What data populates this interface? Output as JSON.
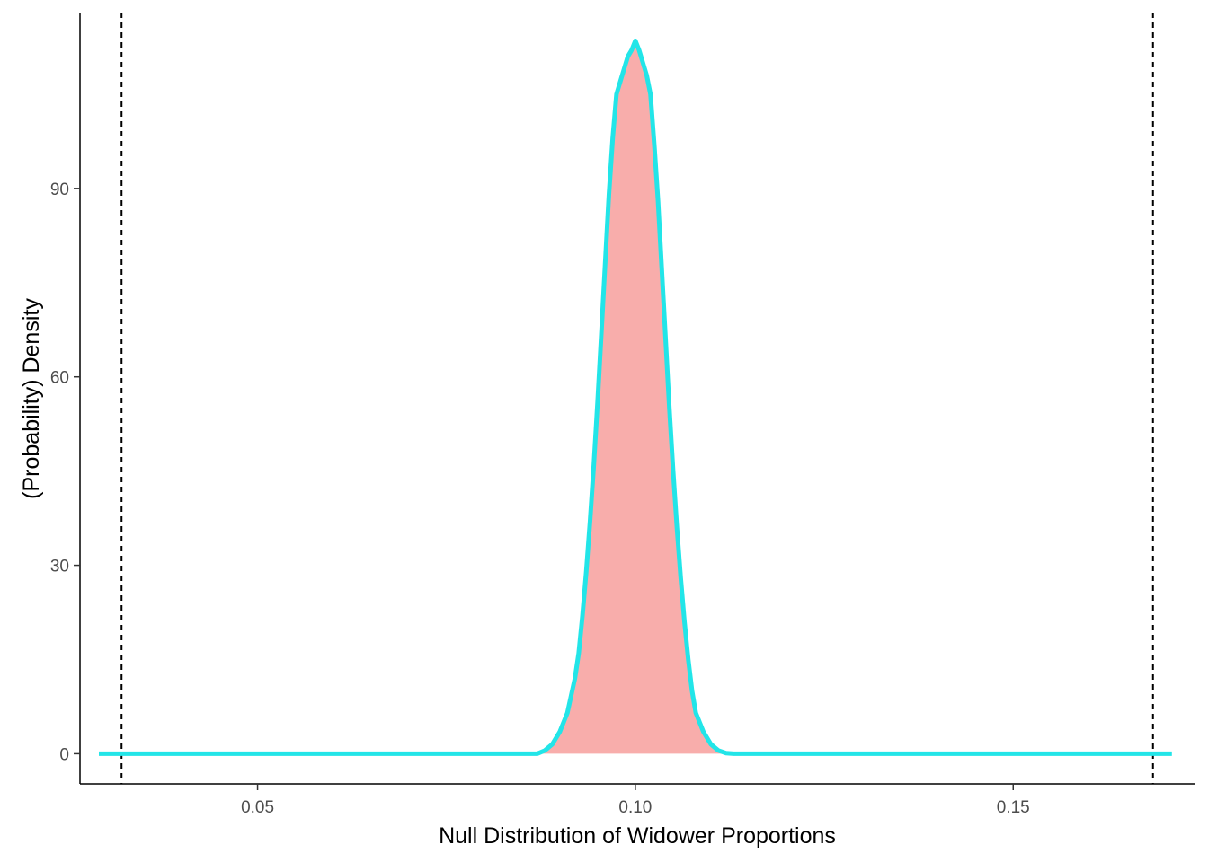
{
  "chart_data": {
    "type": "area",
    "title": "",
    "xlabel": "Null Distribution of Widower Proportions",
    "ylabel": "(Probability) Density",
    "xlim": [
      0.0265,
      0.174
    ],
    "ylim": [
      -4.8,
      118
    ],
    "x_ticks": [
      0.05,
      0.1,
      0.15
    ],
    "x_tick_labels": [
      "0.05",
      "0.10",
      "0.15"
    ],
    "y_ticks": [
      0,
      30,
      60,
      90
    ],
    "y_tick_labels": [
      "0",
      "30",
      "60",
      "90"
    ],
    "grid": false,
    "legend": "none",
    "series": [
      {
        "fill_color": "#f8adab",
        "line_color": "#22e5e8",
        "x": [
          0.029,
          0.087,
          0.088,
          0.089,
          0.09,
          0.091,
          0.092,
          0.0925,
          0.093,
          0.0935,
          0.094,
          0.0945,
          0.095,
          0.0955,
          0.096,
          0.0965,
          0.097,
          0.0975,
          0.098,
          0.0985,
          0.099,
          0.0995,
          0.1,
          0.1005,
          0.101,
          0.1015,
          0.102,
          0.1025,
          0.103,
          0.1035,
          0.104,
          0.1045,
          0.105,
          0.1055,
          0.106,
          0.1065,
          0.107,
          0.1075,
          0.108,
          0.109,
          0.11,
          0.111,
          0.112,
          0.113,
          0.171
        ],
        "y": [
          0.0,
          0.0,
          0.5,
          1.5,
          3.5,
          6.5,
          12,
          16,
          22,
          29,
          37,
          46,
          56,
          67,
          78,
          89,
          98,
          105,
          107,
          109,
          111,
          112,
          113.5,
          112,
          110,
          108,
          105,
          97,
          88,
          77,
          66,
          55,
          45,
          36,
          28,
          21,
          15,
          10,
          6.5,
          3.5,
          1.5,
          0.5,
          0.1,
          0.0,
          0.0
        ]
      }
    ],
    "reference_lines": {
      "x": [
        0.032,
        0.1685
      ],
      "style": "dashed",
      "color": "#000000"
    }
  }
}
